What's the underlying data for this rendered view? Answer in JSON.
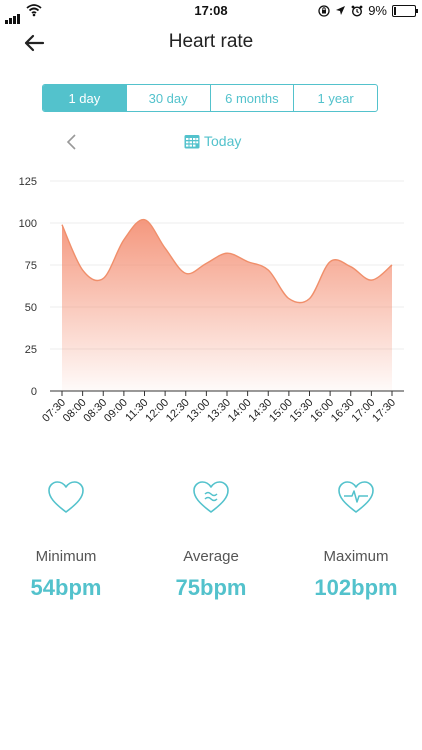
{
  "status_bar": {
    "time": "17:08",
    "battery": "9%"
  },
  "header": {
    "title": "Heart rate"
  },
  "segments": [
    {
      "label": "1 day",
      "active": true
    },
    {
      "label": "30 day",
      "active": false
    },
    {
      "label": "6 months",
      "active": false
    },
    {
      "label": "1 year",
      "active": false
    }
  ],
  "date_nav": {
    "label": "Today"
  },
  "accent_color": "#53c2cc",
  "chart_data": {
    "type": "area",
    "x": [
      "07:30",
      "08:00",
      "08:30",
      "09:00",
      "11:30",
      "12:00",
      "12:30",
      "13:00",
      "13:30",
      "14:00",
      "14:30",
      "15:00",
      "15:30",
      "16:00",
      "16:30",
      "17:00",
      "17:30"
    ],
    "values": [
      99,
      72,
      67,
      90,
      102,
      85,
      70,
      76,
      82,
      77,
      72,
      55,
      55,
      77,
      74,
      66,
      75
    ],
    "y_ticks": [
      "0",
      "25",
      "50",
      "75",
      "100",
      "125"
    ],
    "ylim": [
      0,
      125
    ],
    "grid": true,
    "line_color": "#f08f6b",
    "fill_color": "#f49277"
  },
  "stats": [
    {
      "icon": "heart-icon",
      "label": "Minimum",
      "value": "54bpm"
    },
    {
      "icon": "heart-wave-icon",
      "label": "Average",
      "value": "75bpm"
    },
    {
      "icon": "heart-pulse-icon",
      "label": "Maximum",
      "value": "102bpm"
    }
  ]
}
